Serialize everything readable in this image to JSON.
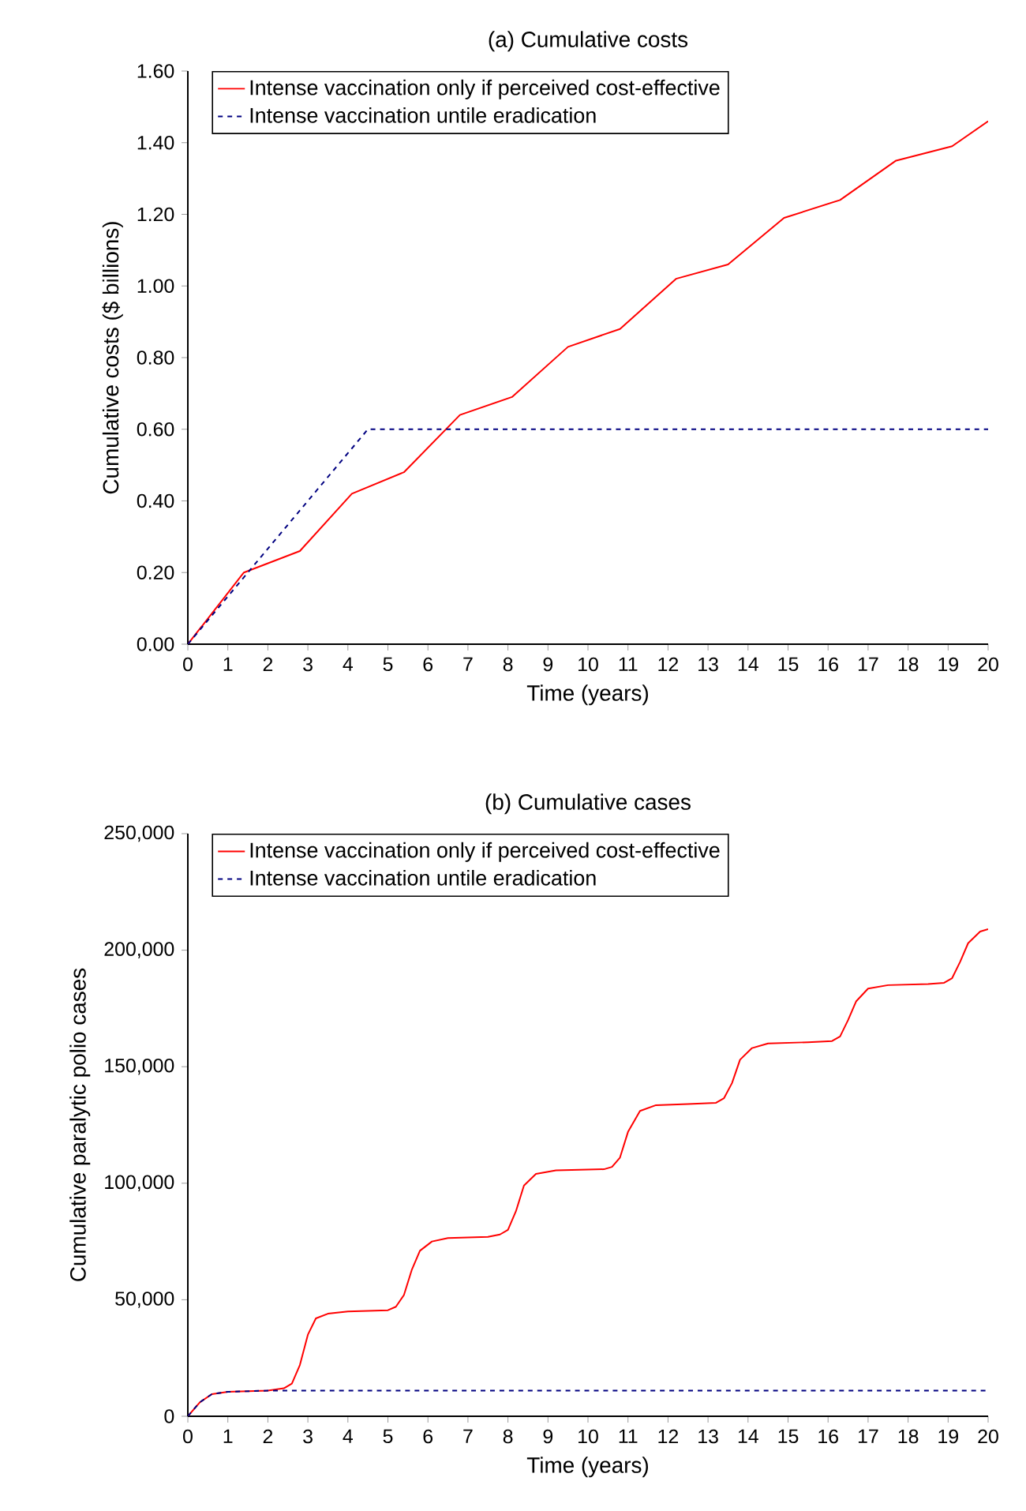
{
  "chart_data": [
    {
      "type": "line",
      "title": "(a) Cumulative costs",
      "xlabel": "Time (years)",
      "ylabel": "Cumulative costs ($ billions)",
      "xlim": [
        0,
        20
      ],
      "xticks": [
        0,
        1,
        2,
        3,
        4,
        5,
        6,
        7,
        8,
        9,
        10,
        11,
        12,
        13,
        14,
        15,
        16,
        17,
        18,
        19,
        20
      ],
      "ylim": [
        0,
        1.6
      ],
      "yticks": [
        {
          "value": 0,
          "label": "0.00"
        },
        {
          "value": 0.2,
          "label": "0.20"
        },
        {
          "value": 0.4,
          "label": "0.40"
        },
        {
          "value": 0.6,
          "label": "0.60"
        },
        {
          "value": 0.8,
          "label": "0.80"
        },
        {
          "value": 1.0,
          "label": "1.00"
        },
        {
          "value": 1.2,
          "label": "1.20"
        },
        {
          "value": 1.4,
          "label": "1.40"
        },
        {
          "value": 1.6,
          "label": "1.60"
        }
      ],
      "grid": false,
      "legend": "top left",
      "series": [
        {
          "name": "Intense vaccination only if perceived cost-effective",
          "color": "#ff0000",
          "line_style": "solid",
          "x": [
            0,
            1.4,
            2.8,
            4.1,
            5.4,
            6.8,
            8.1,
            9.5,
            10.8,
            12.2,
            13.5,
            14.9,
            16.3,
            17.7,
            19.1,
            20
          ],
          "values": [
            0,
            0.2,
            0.26,
            0.42,
            0.48,
            0.64,
            0.69,
            0.83,
            0.88,
            1.02,
            1.06,
            1.19,
            1.24,
            1.35,
            1.39,
            1.46
          ]
        },
        {
          "name": "Intense vaccination untile eradication",
          "color": "#000080",
          "line_style": "dashed",
          "x": [
            0,
            4.5,
            20
          ],
          "values": [
            0,
            0.6,
            0.6
          ]
        }
      ]
    },
    {
      "type": "line",
      "title": "(b) Cumulative cases",
      "xlabel": "Time (years)",
      "ylabel": "Cumulative paralytic polio cases",
      "xlim": [
        0,
        20
      ],
      "xticks": [
        0,
        1,
        2,
        3,
        4,
        5,
        6,
        7,
        8,
        9,
        10,
        11,
        12,
        13,
        14,
        15,
        16,
        17,
        18,
        19,
        20
      ],
      "ylim": [
        0,
        250000
      ],
      "yticks": [
        0,
        {
          "value": 50000,
          "label": "50,000"
        },
        {
          "value": 100000,
          "label": "100,000"
        },
        {
          "value": 150000,
          "label": "150,000"
        },
        {
          "value": 200000,
          "label": "200,000"
        },
        {
          "value": 250000,
          "label": "250,000"
        }
      ],
      "grid": false,
      "legend": "top left",
      "series": [
        {
          "name": "Intense vaccination only if perceived cost-effective",
          "color": "#ff0000",
          "line_style": "solid",
          "x": [
            0,
            0.3,
            0.6,
            1,
            2,
            2.4,
            2.6,
            2.8,
            3,
            3.2,
            3.5,
            4,
            5,
            5.2,
            5.4,
            5.6,
            5.8,
            6.1,
            6.5,
            7.5,
            7.8,
            8,
            8.2,
            8.4,
            8.7,
            9.2,
            10.4,
            10.6,
            10.8,
            11,
            11.3,
            11.7,
            12.5,
            13.2,
            13.4,
            13.6,
            13.8,
            14.1,
            14.5,
            15.5,
            16.1,
            16.3,
            16.5,
            16.7,
            17,
            17.5,
            18.5,
            18.9,
            19.1,
            19.3,
            19.5,
            19.8,
            20
          ],
          "values": [
            0,
            6000,
            9500,
            10500,
            11000,
            12000,
            14000,
            22000,
            35000,
            42000,
            44000,
            45000,
            45500,
            47000,
            52000,
            63000,
            71000,
            75000,
            76500,
            77000,
            78000,
            80000,
            88000,
            99000,
            104000,
            105500,
            106000,
            107000,
            111000,
            122000,
            131000,
            133500,
            134000,
            134500,
            136500,
            143000,
            153000,
            158000,
            160000,
            160500,
            161000,
            163000,
            170000,
            178000,
            183500,
            185000,
            185500,
            186000,
            188000,
            195000,
            203000,
            208000,
            209000
          ]
        },
        {
          "name": "Intense vaccination untile eradication",
          "color": "#000080",
          "line_style": "dashed",
          "x": [
            0,
            0.3,
            0.6,
            1,
            2,
            20
          ],
          "values": [
            0,
            6000,
            9500,
            10500,
            11000,
            11000
          ]
        }
      ]
    }
  ]
}
